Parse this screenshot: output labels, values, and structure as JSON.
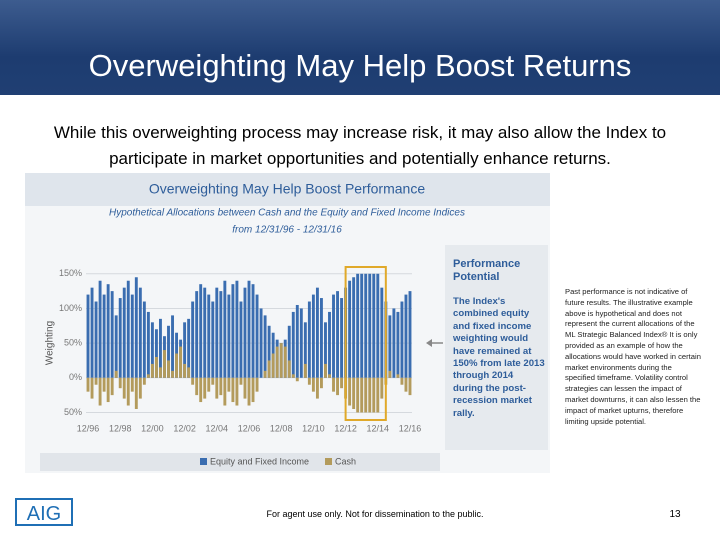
{
  "header": {
    "title": "Overweighting May Help Boost Returns",
    "subtitle": "While this overweighting process may increase risk, it may also allow the Index to participate in market opportunities and potentially enhance returns."
  },
  "chart_data": {
    "type": "bar",
    "title": "Overweighting May Help Boost Performance",
    "subtitle": "Hypothetical Allocations between Cash and the Equity and Fixed Income Indices",
    "subtitle2": "from 12/31/96 - 12/31/16",
    "y_label": "Weighting",
    "categories": [
      "12/96",
      null,
      null,
      null,
      null,
      null,
      null,
      null,
      "12/98",
      null,
      null,
      null,
      null,
      null,
      null,
      null,
      "12/00",
      null,
      null,
      null,
      null,
      null,
      null,
      null,
      "12/02",
      null,
      null,
      null,
      null,
      null,
      null,
      null,
      "12/04",
      null,
      null,
      null,
      null,
      null,
      null,
      null,
      "12/06",
      null,
      null,
      null,
      null,
      null,
      null,
      null,
      "12/08",
      null,
      null,
      null,
      null,
      null,
      null,
      null,
      "12/10",
      null,
      null,
      null,
      null,
      null,
      null,
      null,
      "12/12",
      null,
      null,
      null,
      null,
      null,
      null,
      null,
      "12/14",
      null,
      null,
      null,
      null,
      null,
      null,
      null,
      "12/16"
    ],
    "series": [
      {
        "name": "Equity and Fixed Income",
        "color": "#3a6db0",
        "values": [
          120,
          130,
          110,
          140,
          120,
          135,
          125,
          90,
          115,
          130,
          140,
          120,
          145,
          130,
          110,
          95,
          80,
          70,
          85,
          60,
          75,
          90,
          65,
          55,
          80,
          85,
          110,
          125,
          135,
          130,
          120,
          110,
          130,
          125,
          140,
          120,
          135,
          140,
          110,
          130,
          140,
          135,
          120,
          100,
          90,
          75,
          65,
          55,
          50,
          55,
          75,
          95,
          105,
          100,
          80,
          110,
          120,
          130,
          115,
          80,
          95,
          120,
          125,
          115,
          130,
          140,
          145,
          150,
          150,
          150,
          150,
          150,
          150,
          130,
          110,
          90,
          100,
          95,
          110,
          120,
          125
        ]
      },
      {
        "name": "Cash",
        "color": "#b39b5c",
        "values": [
          -20,
          -30,
          -10,
          -40,
          -20,
          -35,
          -25,
          10,
          -15,
          -30,
          -40,
          -20,
          -45,
          -30,
          -10,
          5,
          20,
          30,
          15,
          40,
          25,
          10,
          35,
          45,
          20,
          15,
          -10,
          -25,
          -35,
          -30,
          -20,
          -10,
          -30,
          -25,
          -40,
          -20,
          -35,
          -40,
          -10,
          -30,
          -40,
          -35,
          -20,
          0,
          10,
          25,
          35,
          45,
          50,
          45,
          25,
          5,
          -5,
          0,
          20,
          -10,
          -20,
          -30,
          -15,
          20,
          5,
          -20,
          -25,
          -15,
          -30,
          -40,
          -45,
          -50,
          -50,
          -50,
          -50,
          -50,
          -50,
          -30,
          -10,
          10,
          0,
          5,
          -10,
          -20,
          -25
        ]
      }
    ],
    "ylim": [
      -58,
      167
    ],
    "yticks": [
      {
        "value": 150,
        "label": "150%"
      },
      {
        "value": 100,
        "label": "100%"
      },
      {
        "value": 50,
        "label": "50%"
      },
      {
        "value": 0,
        "label": "0%"
      },
      {
        "value": -50,
        "label": "50%"
      }
    ],
    "grid": true,
    "legend": "bottom",
    "callout": {
      "title": "Performance Potential",
      "text": "The Index's combined equity and fixed income weighting would have remained at 150% from late 2013 through 2014 during the post-recession market rally."
    }
  },
  "note": "Past performance is not indicative of future results. The illustrative example above is hypothetical and does not represent the current allocations of the ML Strategic Balanced Index® It is only provided as an example of how the allocations would have worked in certain market environments during the specified timeframe. Volatility control strategies can lessen the impact of market downturns, it can also lessen the impact of market upturns, therefore limiting upside potential.",
  "footer": {
    "disclaimer": "For agent use only. Not for dissemination to the public.",
    "page": "13",
    "logo": "AIG"
  }
}
